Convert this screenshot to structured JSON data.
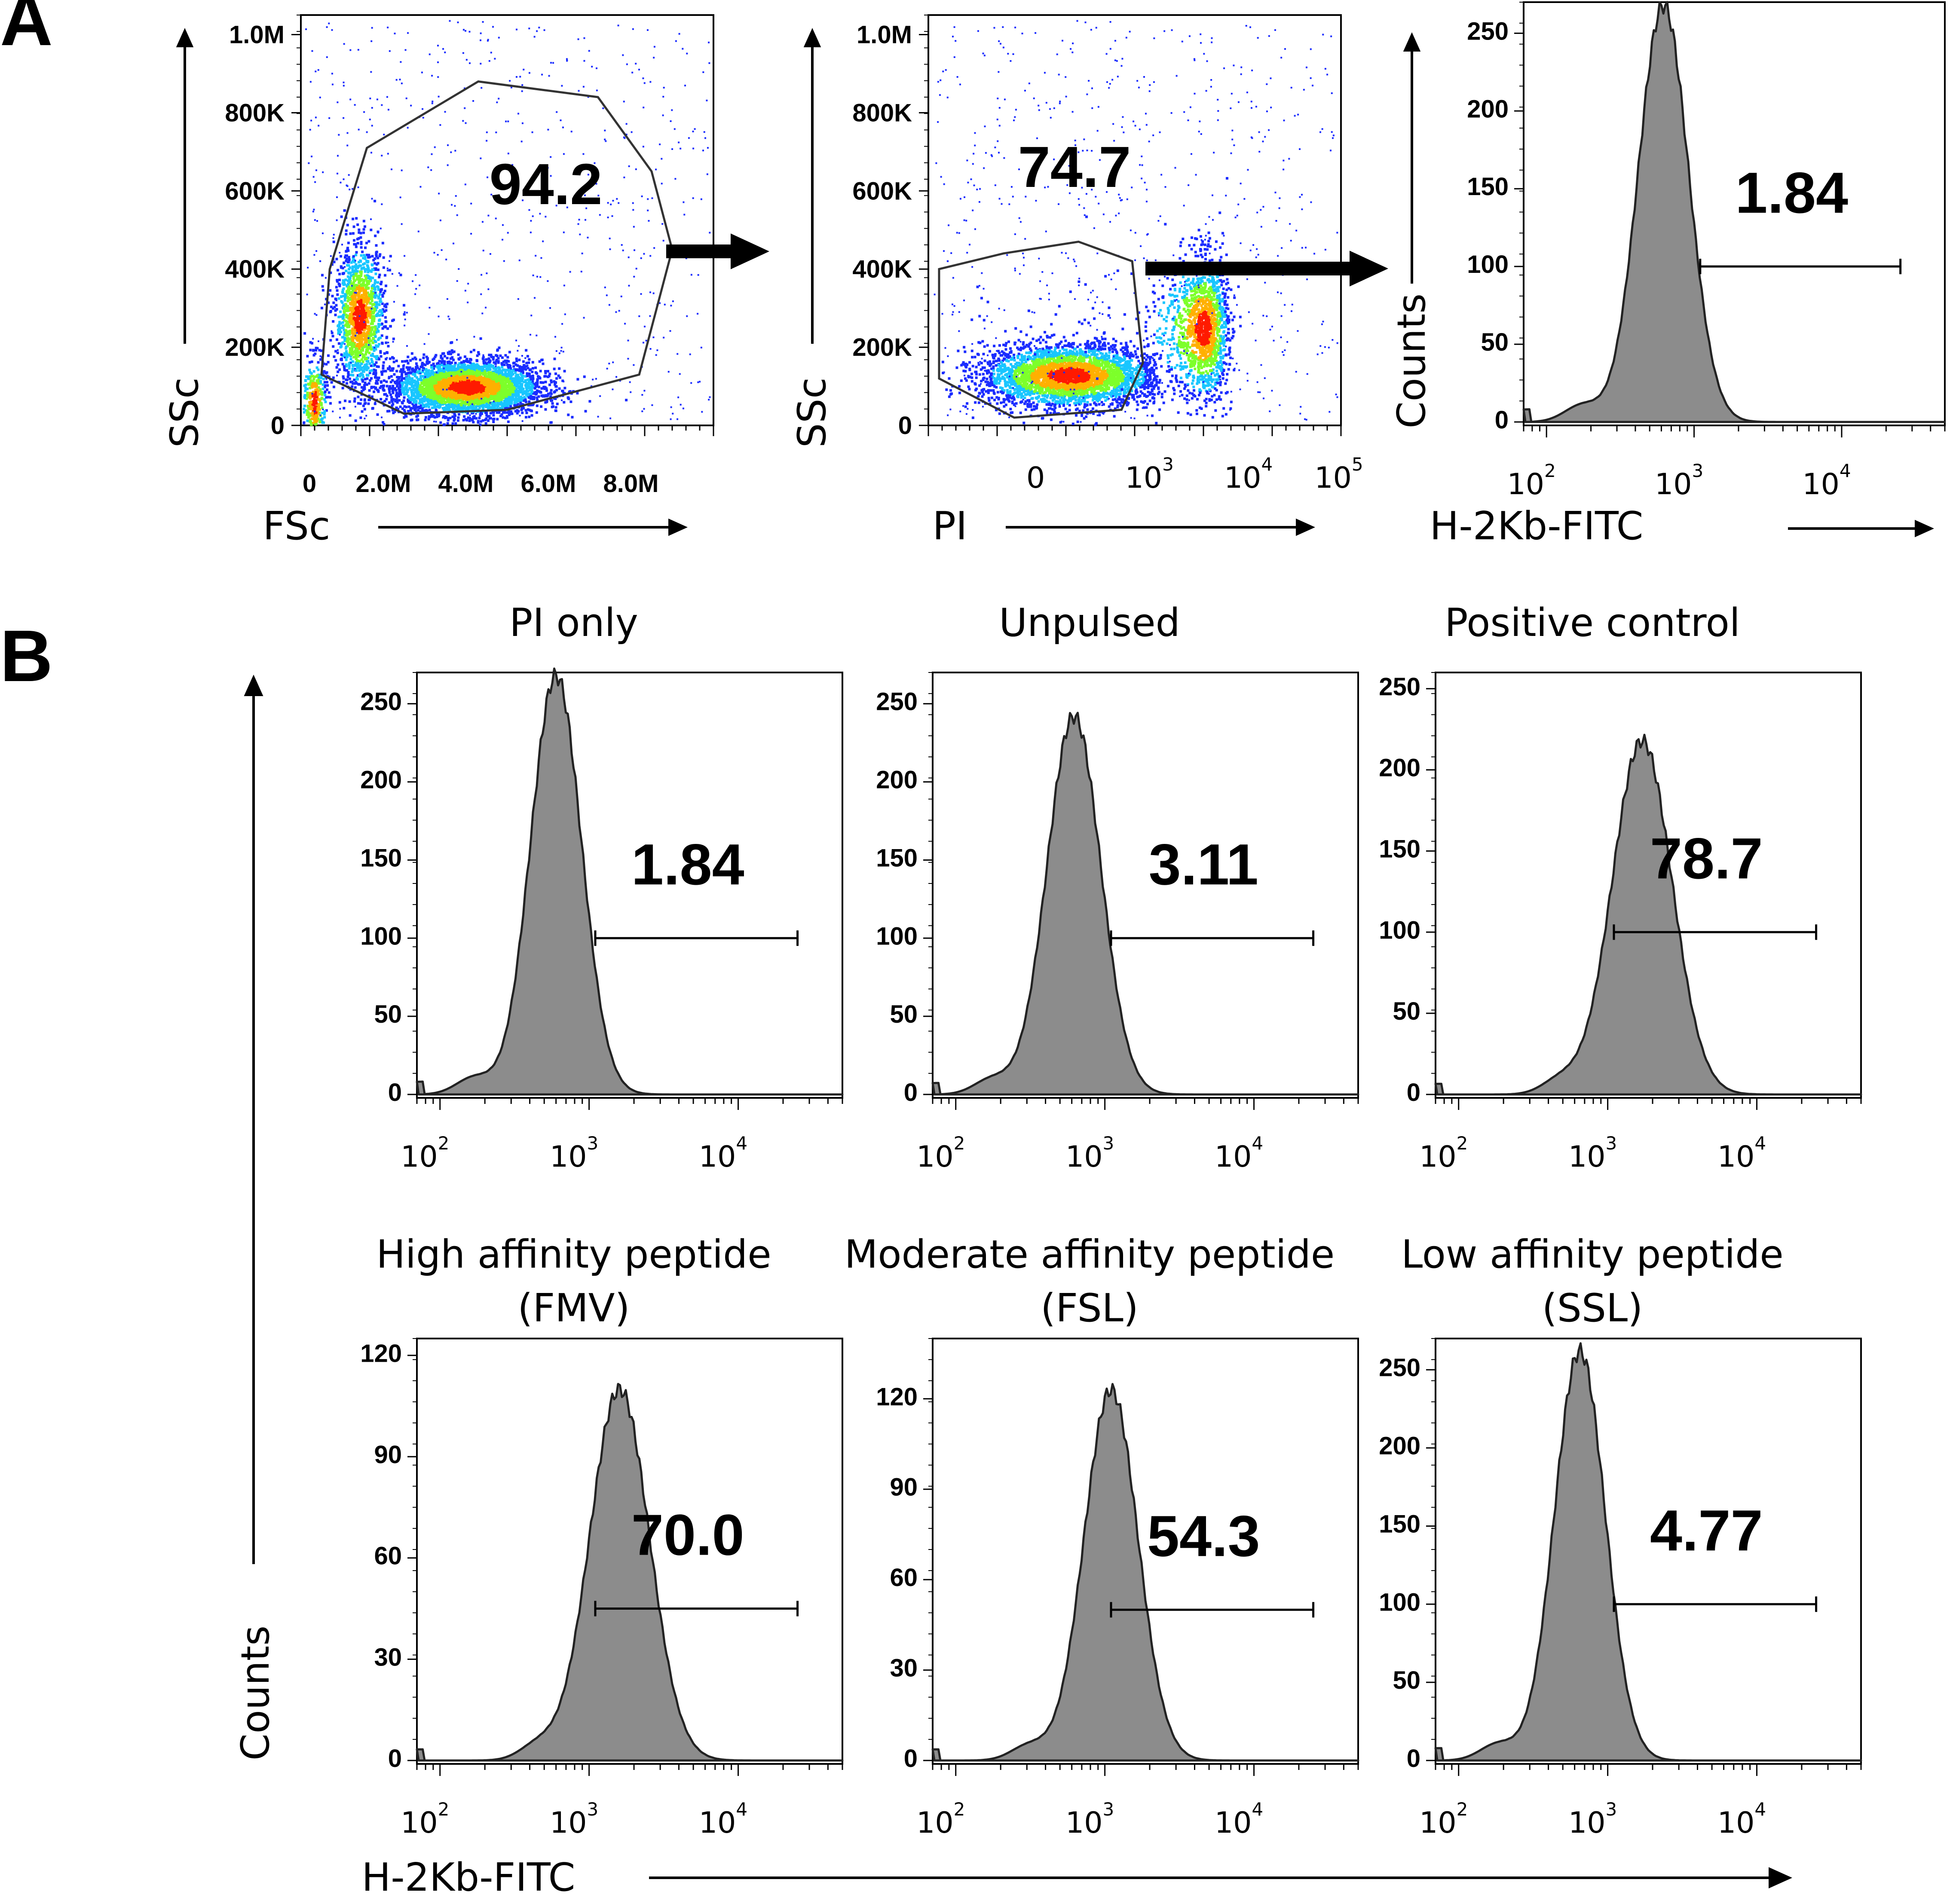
{
  "panel_labels": [
    "A",
    "B"
  ],
  "chart_data": [
    {
      "id": "a1",
      "type": "scatter",
      "title": "",
      "xlabel": "FSc",
      "ylabel": "SSc",
      "x_ticks": [
        "0",
        "2.0M",
        "4.0M",
        "6.0M",
        "8.0M"
      ],
      "y_ticks": [
        "0",
        "200K",
        "400K",
        "600K",
        "800K",
        "1.0M"
      ],
      "xlim": [
        0,
        10000000
      ],
      "ylim": [
        0,
        1050000
      ],
      "gate_percent": "94.2",
      "clusters": [
        {
          "x": 4000000,
          "y": 100000,
          "sx": 900000,
          "sy": 35000,
          "n": 4000
        },
        {
          "x": 1400000,
          "y": 280000,
          "sx": 300000,
          "sy": 90000,
          "n": 1500
        },
        {
          "x": 300000,
          "y": 60000,
          "sx": 150000,
          "sy": 60000,
          "n": 400
        }
      ],
      "gate_polygon": [
        [
          700000,
          400000
        ],
        [
          1600000,
          710000
        ],
        [
          4300000,
          880000
        ],
        [
          7200000,
          840000
        ],
        [
          8500000,
          650000
        ],
        [
          9000000,
          450000
        ],
        [
          8200000,
          130000
        ],
        [
          5000000,
          40000
        ],
        [
          2500000,
          30000
        ],
        [
          500000,
          130000
        ]
      ]
    },
    {
      "id": "a2",
      "type": "scatter",
      "title": "",
      "xlabel": "PI",
      "ylabel": "SSc",
      "x_ticks": [
        "0",
        "10^3",
        "10^4",
        "10^5"
      ],
      "y_ticks": [
        "0",
        "200K",
        "400K",
        "600K",
        "800K",
        "1.0M"
      ],
      "xlim": [
        -1000,
        100000
      ],
      "ylim": [
        0,
        1050000
      ],
      "gate_percent": "74.7",
      "clusters": [
        {
          "x": 300,
          "y": 130000,
          "sx": 400,
          "sy": 40000,
          "n": 3500
        },
        {
          "x": 4000,
          "y": 250000,
          "sx": 1500,
          "sy": 90000,
          "n": 1600
        }
      ],
      "gate_polygon": [
        [
          -900,
          400000
        ],
        [
          -300,
          440000
        ],
        [
          400,
          470000
        ],
        [
          900,
          420000
        ],
        [
          1000,
          160000
        ],
        [
          800,
          40000
        ],
        [
          -200,
          20000
        ],
        [
          -900,
          120000
        ]
      ]
    },
    {
      "id": "a3",
      "type": "area",
      "title": "",
      "xlabel": "H-2Kb-FITC",
      "ylabel": "Counts",
      "x_ticks": [
        "10^2",
        "10^3",
        "10^4"
      ],
      "y_ticks": [
        "0",
        "50",
        "100",
        "150",
        "200",
        "250"
      ],
      "xlim": [
        70,
        50000
      ],
      "ylim": [
        0,
        270
      ],
      "peak_x": 620,
      "peak_y": 268,
      "width": 0.17,
      "gate_percent": "1.84",
      "gate_range": [
        1100,
        25000
      ],
      "gate_y": 100
    },
    {
      "id": "b1",
      "type": "area",
      "title": "PI only",
      "subtitle": "",
      "x_ticks": [
        "10^2",
        "10^3",
        "10^4"
      ],
      "y_ticks": [
        "0",
        "50",
        "100",
        "150",
        "200",
        "250"
      ],
      "xlim": [
        70,
        50000
      ],
      "ylim": [
        0,
        270
      ],
      "peak_x": 600,
      "peak_y": 268,
      "width": 0.17,
      "gate_percent": "1.84",
      "gate_range": [
        1100,
        25000
      ],
      "gate_y": 100
    },
    {
      "id": "b2",
      "type": "area",
      "title": "Unpulsed",
      "subtitle": "",
      "x_ticks": [
        "10^2",
        "10^3",
        "10^4"
      ],
      "y_ticks": [
        "0",
        "50",
        "100",
        "150",
        "200",
        "250"
      ],
      "xlim": [
        70,
        50000
      ],
      "ylim": [
        0,
        270
      ],
      "peak_x": 620,
      "peak_y": 242,
      "width": 0.18,
      "gate_percent": "3.11",
      "gate_range": [
        1100,
        25000
      ],
      "gate_y": 100
    },
    {
      "id": "b3",
      "type": "area",
      "title": "Positive control",
      "subtitle": "",
      "x_ticks": [
        "10^2",
        "10^3",
        "10^4"
      ],
      "y_ticks": [
        "0",
        "50",
        "100",
        "150",
        "200",
        "250"
      ],
      "xlim": [
        70,
        50000
      ],
      "ylim": [
        0,
        260
      ],
      "peak_x": 1700,
      "peak_y": 218,
      "width": 0.2,
      "gate_percent": "78.7",
      "gate_range": [
        1100,
        25000
      ],
      "gate_y": 100
    },
    {
      "id": "b4",
      "type": "area",
      "title": "High affinity peptide",
      "subtitle": "(FMV)",
      "x_ticks": [
        "10^2",
        "10^3",
        "10^4"
      ],
      "y_ticks": [
        "0",
        "30",
        "60",
        "90",
        "120"
      ],
      "xlim": [
        70,
        50000
      ],
      "ylim": [
        0,
        125
      ],
      "peak_x": 1600,
      "peak_y": 110,
      "width": 0.2,
      "gate_percent": "70.0",
      "gate_range": [
        1100,
        25000
      ],
      "gate_y": 45
    },
    {
      "id": "b5",
      "type": "area",
      "title": "Moderate affinity peptide",
      "subtitle": "(FSL)",
      "x_ticks": [
        "10^2",
        "10^3",
        "10^4"
      ],
      "y_ticks": [
        "0",
        "30",
        "60",
        "90",
        "120"
      ],
      "xlim": [
        70,
        50000
      ],
      "ylim": [
        0,
        140
      ],
      "peak_x": 1100,
      "peak_y": 123,
      "width": 0.18,
      "gate_percent": "54.3",
      "gate_range": [
        1100,
        25000
      ],
      "gate_y": 50
    },
    {
      "id": "b6",
      "type": "area",
      "title": "Low affinity peptide",
      "subtitle": "(SSL)",
      "x_ticks": [
        "10^2",
        "10^3",
        "10^4"
      ],
      "y_ticks": [
        "0",
        "50",
        "100",
        "150",
        "200",
        "250"
      ],
      "xlim": [
        70,
        50000
      ],
      "ylim": [
        0,
        270
      ],
      "peak_x": 650,
      "peak_y": 262,
      "width": 0.17,
      "gate_percent": "4.77",
      "gate_range": [
        1100,
        25000
      ],
      "gate_y": 100
    }
  ],
  "shared_labels": {
    "b_ylabel": "Counts",
    "b_xlabel": "H-2Kb-FITC"
  },
  "colors": {
    "histogram_fill": "#8c8c8c",
    "histogram_line": "#222222",
    "density_low": "#1a2cff",
    "density_high": "#ff1a00"
  }
}
